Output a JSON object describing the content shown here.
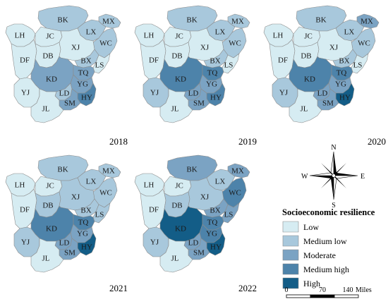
{
  "legend": {
    "title": "Socioeconomic resilience",
    "classes": [
      {
        "key": "low",
        "label": "Low",
        "color": "#d6ecf2"
      },
      {
        "key": "mlow",
        "label": "Medium low",
        "color": "#a8c8dc"
      },
      {
        "key": "mod",
        "label": "Moderate",
        "color": "#7ba3c3"
      },
      {
        "key": "mhigh",
        "label": "Medium high",
        "color": "#4d83aa"
      },
      {
        "key": "high",
        "label": "High",
        "color": "#135d87"
      }
    ]
  },
  "compass": {
    "n": "N",
    "s": "S",
    "e": "E",
    "w": "W"
  },
  "scalebar": {
    "ticks": [
      "0",
      "70",
      "140"
    ],
    "unit": "Miles"
  },
  "region_codes": [
    "BK",
    "MX",
    "LH",
    "JC",
    "LX",
    "WC",
    "DF",
    "DB",
    "XJ",
    "BX",
    "LS",
    "KD",
    "TQ",
    "YG",
    "LD",
    "YJ",
    "HY",
    "SM",
    "JL"
  ],
  "maps": [
    {
      "year": "2018",
      "classes": {
        "BK": "mlow",
        "MX": "mlow",
        "LH": "low",
        "JC": "low",
        "LX": "mlow",
        "WC": "mlow",
        "DF": "low",
        "DB": "low",
        "XJ": "low",
        "BX": "mlow",
        "LS": "low",
        "KD": "mod",
        "TQ": "mod",
        "YG": "mod",
        "LD": "mlow",
        "YJ": "low",
        "HY": "mhigh",
        "SM": "mod",
        "JL": "low"
      }
    },
    {
      "year": "2019",
      "classes": {
        "BK": "mlow",
        "MX": "mlow",
        "LH": "low",
        "JC": "low",
        "LX": "mlow",
        "WC": "mlow",
        "DF": "low",
        "DB": "low",
        "XJ": "low",
        "BX": "mlow",
        "LS": "low",
        "KD": "mhigh",
        "TQ": "mhigh",
        "YG": "mod",
        "LD": "mod",
        "YJ": "mlow",
        "HY": "mhigh",
        "SM": "mod",
        "JL": "low"
      }
    },
    {
      "year": "2020",
      "classes": {
        "BK": "mlow",
        "MX": "mod",
        "LH": "low",
        "JC": "low",
        "LX": "mlow",
        "WC": "mlow",
        "DF": "low",
        "DB": "low",
        "XJ": "low",
        "BX": "mlow",
        "LS": "low",
        "KD": "mhigh",
        "TQ": "mhigh",
        "YG": "mod",
        "LD": "mod",
        "YJ": "mlow",
        "HY": "high",
        "SM": "mod",
        "JL": "low"
      }
    },
    {
      "year": "2021",
      "classes": {
        "BK": "mlow",
        "MX": "mlow",
        "LH": "low",
        "JC": "low",
        "LX": "mlow",
        "WC": "mlow",
        "DF": "low",
        "DB": "mlow",
        "XJ": "mlow",
        "BX": "mlow",
        "LS": "mlow",
        "KD": "mhigh",
        "TQ": "mhigh",
        "YG": "mod",
        "LD": "mod",
        "YJ": "mlow",
        "HY": "high",
        "SM": "mod",
        "JL": "low"
      }
    },
    {
      "year": "2022",
      "classes": {
        "BK": "mod",
        "MX": "mod",
        "LH": "low",
        "JC": "low",
        "LX": "mlow",
        "WC": "mhigh",
        "DF": "low",
        "DB": "mlow",
        "XJ": "mlow",
        "BX": "mod",
        "LS": "mod",
        "KD": "high",
        "TQ": "mhigh",
        "YG": "mhigh",
        "LD": "mod",
        "YJ": "mlow",
        "HY": "high",
        "SM": "mod",
        "JL": "low"
      }
    }
  ]
}
